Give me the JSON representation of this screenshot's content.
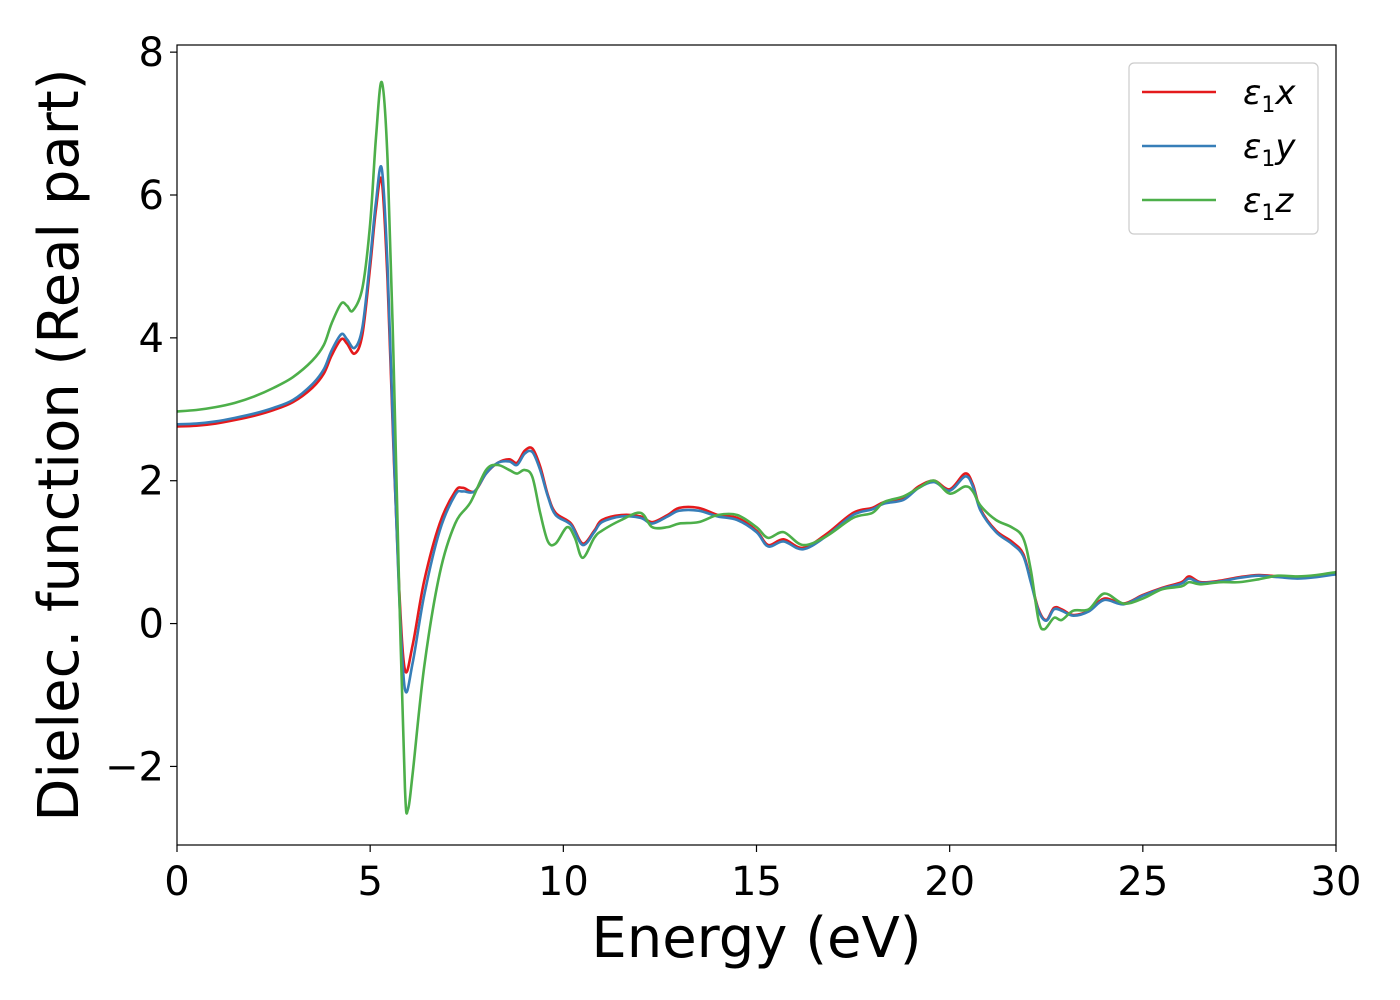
{
  "chart_data": {
    "type": "line",
    "title": "",
    "xlabel": "Energy (eV)",
    "ylabel": "Dielec. function (Real part)",
    "xlim": [
      0,
      30
    ],
    "ylim": [
      -3.1,
      8.1
    ],
    "xticks": [
      0,
      5,
      10,
      15,
      20,
      25,
      30
    ],
    "xtick_labels": [
      "0",
      "5",
      "10",
      "15",
      "20",
      "25",
      "30"
    ],
    "yticks": [
      -2,
      0,
      2,
      4,
      6,
      8
    ],
    "ytick_labels": [
      "−2",
      "0",
      "2",
      "4",
      "6",
      "8"
    ],
    "grid": false,
    "legend_position": "top-right",
    "series": [
      {
        "name": "ε1x",
        "color": "#e41a1c",
        "points": [
          [
            0,
            2.76
          ],
          [
            0.5,
            2.77
          ],
          [
            1,
            2.8
          ],
          [
            1.5,
            2.85
          ],
          [
            2,
            2.91
          ],
          [
            2.5,
            2.99
          ],
          [
            3,
            3.1
          ],
          [
            3.5,
            3.3
          ],
          [
            3.8,
            3.5
          ],
          [
            4,
            3.75
          ],
          [
            4.25,
            3.98
          ],
          [
            4.4,
            3.92
          ],
          [
            4.6,
            3.78
          ],
          [
            4.8,
            4.05
          ],
          [
            5.0,
            5.0
          ],
          [
            5.15,
            5.8
          ],
          [
            5.3,
            6.2
          ],
          [
            5.45,
            4.8
          ],
          [
            5.6,
            2.5
          ],
          [
            5.75,
            0.5
          ],
          [
            5.9,
            -0.65
          ],
          [
            6.1,
            -0.3
          ],
          [
            6.4,
            0.6
          ],
          [
            6.8,
            1.4
          ],
          [
            7.2,
            1.85
          ],
          [
            7.4,
            1.9
          ],
          [
            7.7,
            1.85
          ],
          [
            8.0,
            2.1
          ],
          [
            8.3,
            2.25
          ],
          [
            8.6,
            2.3
          ],
          [
            8.8,
            2.25
          ],
          [
            9.0,
            2.42
          ],
          [
            9.2,
            2.45
          ],
          [
            9.4,
            2.2
          ],
          [
            9.6,
            1.8
          ],
          [
            9.8,
            1.55
          ],
          [
            10.2,
            1.4
          ],
          [
            10.5,
            1.12
          ],
          [
            10.8,
            1.3
          ],
          [
            11.0,
            1.45
          ],
          [
            11.5,
            1.52
          ],
          [
            12.0,
            1.5
          ],
          [
            12.3,
            1.42
          ],
          [
            12.7,
            1.52
          ],
          [
            13.0,
            1.62
          ],
          [
            13.5,
            1.62
          ],
          [
            14.0,
            1.52
          ],
          [
            14.5,
            1.48
          ],
          [
            15.0,
            1.3
          ],
          [
            15.3,
            1.1
          ],
          [
            15.7,
            1.18
          ],
          [
            16.2,
            1.06
          ],
          [
            16.8,
            1.25
          ],
          [
            17.5,
            1.55
          ],
          [
            18.0,
            1.62
          ],
          [
            18.3,
            1.7
          ],
          [
            18.8,
            1.75
          ],
          [
            19.2,
            1.92
          ],
          [
            19.6,
            2.0
          ],
          [
            20.0,
            1.88
          ],
          [
            20.4,
            2.1
          ],
          [
            20.6,
            1.95
          ],
          [
            20.8,
            1.6
          ],
          [
            21.2,
            1.3
          ],
          [
            21.6,
            1.15
          ],
          [
            21.9,
            0.98
          ],
          [
            22.1,
            0.6
          ],
          [
            22.3,
            0.2
          ],
          [
            22.5,
            0.05
          ],
          [
            22.7,
            0.22
          ],
          [
            22.9,
            0.2
          ],
          [
            23.2,
            0.12
          ],
          [
            23.6,
            0.18
          ],
          [
            24.0,
            0.35
          ],
          [
            24.5,
            0.28
          ],
          [
            25.0,
            0.4
          ],
          [
            25.5,
            0.5
          ],
          [
            26.0,
            0.58
          ],
          [
            26.2,
            0.66
          ],
          [
            26.5,
            0.58
          ],
          [
            27.0,
            0.6
          ],
          [
            27.5,
            0.65
          ],
          [
            28.0,
            0.68
          ],
          [
            28.5,
            0.66
          ],
          [
            29.0,
            0.64
          ],
          [
            29.5,
            0.66
          ],
          [
            30.0,
            0.7
          ]
        ]
      },
      {
        "name": "ε1y",
        "color": "#377eb8",
        "points": [
          [
            0,
            2.79
          ],
          [
            0.5,
            2.8
          ],
          [
            1,
            2.83
          ],
          [
            1.5,
            2.88
          ],
          [
            2,
            2.94
          ],
          [
            2.5,
            3.02
          ],
          [
            3,
            3.13
          ],
          [
            3.5,
            3.35
          ],
          [
            3.8,
            3.56
          ],
          [
            4,
            3.82
          ],
          [
            4.25,
            4.05
          ],
          [
            4.4,
            3.98
          ],
          [
            4.6,
            3.86
          ],
          [
            4.8,
            4.15
          ],
          [
            5.0,
            5.1
          ],
          [
            5.15,
            5.9
          ],
          [
            5.3,
            6.37
          ],
          [
            5.45,
            5.0
          ],
          [
            5.6,
            2.6
          ],
          [
            5.75,
            0.4
          ],
          [
            5.9,
            -0.92
          ],
          [
            6.1,
            -0.55
          ],
          [
            6.4,
            0.4
          ],
          [
            6.8,
            1.3
          ],
          [
            7.2,
            1.8
          ],
          [
            7.4,
            1.85
          ],
          [
            7.7,
            1.85
          ],
          [
            8.0,
            2.1
          ],
          [
            8.3,
            2.25
          ],
          [
            8.6,
            2.27
          ],
          [
            8.8,
            2.22
          ],
          [
            9.0,
            2.38
          ],
          [
            9.2,
            2.4
          ],
          [
            9.4,
            2.15
          ],
          [
            9.6,
            1.78
          ],
          [
            9.8,
            1.52
          ],
          [
            10.2,
            1.38
          ],
          [
            10.5,
            1.1
          ],
          [
            10.8,
            1.28
          ],
          [
            11.0,
            1.42
          ],
          [
            11.5,
            1.5
          ],
          [
            12.0,
            1.48
          ],
          [
            12.3,
            1.4
          ],
          [
            12.7,
            1.5
          ],
          [
            13.0,
            1.58
          ],
          [
            13.5,
            1.58
          ],
          [
            14.0,
            1.5
          ],
          [
            14.5,
            1.45
          ],
          [
            15.0,
            1.28
          ],
          [
            15.3,
            1.08
          ],
          [
            15.7,
            1.15
          ],
          [
            16.2,
            1.04
          ],
          [
            16.8,
            1.22
          ],
          [
            17.5,
            1.52
          ],
          [
            18.0,
            1.6
          ],
          [
            18.3,
            1.68
          ],
          [
            18.8,
            1.73
          ],
          [
            19.2,
            1.9
          ],
          [
            19.6,
            1.98
          ],
          [
            20.0,
            1.86
          ],
          [
            20.4,
            2.06
          ],
          [
            20.6,
            1.92
          ],
          [
            20.8,
            1.58
          ],
          [
            21.2,
            1.28
          ],
          [
            21.6,
            1.12
          ],
          [
            21.9,
            0.95
          ],
          [
            22.1,
            0.58
          ],
          [
            22.3,
            0.18
          ],
          [
            22.5,
            0.04
          ],
          [
            22.7,
            0.2
          ],
          [
            22.9,
            0.18
          ],
          [
            23.2,
            0.11
          ],
          [
            23.6,
            0.17
          ],
          [
            24.0,
            0.33
          ],
          [
            24.5,
            0.27
          ],
          [
            25.0,
            0.39
          ],
          [
            25.5,
            0.49
          ],
          [
            26.0,
            0.56
          ],
          [
            26.2,
            0.63
          ],
          [
            26.5,
            0.57
          ],
          [
            27.0,
            0.59
          ],
          [
            27.5,
            0.64
          ],
          [
            28.0,
            0.67
          ],
          [
            28.5,
            0.65
          ],
          [
            29.0,
            0.63
          ],
          [
            29.5,
            0.65
          ],
          [
            30.0,
            0.69
          ]
        ]
      },
      {
        "name": "ε1z",
        "color": "#4daf4a",
        "points": [
          [
            0,
            2.97
          ],
          [
            0.5,
            2.99
          ],
          [
            1,
            3.03
          ],
          [
            1.5,
            3.09
          ],
          [
            2,
            3.18
          ],
          [
            2.5,
            3.3
          ],
          [
            3,
            3.45
          ],
          [
            3.5,
            3.68
          ],
          [
            3.8,
            3.9
          ],
          [
            4,
            4.2
          ],
          [
            4.25,
            4.48
          ],
          [
            4.4,
            4.45
          ],
          [
            4.55,
            4.38
          ],
          [
            4.8,
            4.7
          ],
          [
            5.0,
            5.6
          ],
          [
            5.15,
            6.8
          ],
          [
            5.3,
            7.58
          ],
          [
            5.45,
            6.5
          ],
          [
            5.6,
            3.8
          ],
          [
            5.75,
            0.5
          ],
          [
            5.9,
            -2.3
          ],
          [
            5.98,
            -2.6
          ],
          [
            6.1,
            -2.1
          ],
          [
            6.4,
            -0.6
          ],
          [
            6.8,
            0.7
          ],
          [
            7.2,
            1.4
          ],
          [
            7.6,
            1.7
          ],
          [
            8.0,
            2.15
          ],
          [
            8.3,
            2.22
          ],
          [
            8.6,
            2.15
          ],
          [
            8.8,
            2.1
          ],
          [
            9.0,
            2.15
          ],
          [
            9.2,
            2.05
          ],
          [
            9.4,
            1.55
          ],
          [
            9.6,
            1.15
          ],
          [
            9.8,
            1.12
          ],
          [
            10.1,
            1.35
          ],
          [
            10.3,
            1.2
          ],
          [
            10.5,
            0.92
          ],
          [
            10.8,
            1.2
          ],
          [
            11.0,
            1.3
          ],
          [
            11.5,
            1.45
          ],
          [
            12.0,
            1.55
          ],
          [
            12.3,
            1.35
          ],
          [
            12.7,
            1.35
          ],
          [
            13.0,
            1.4
          ],
          [
            13.5,
            1.42
          ],
          [
            14.0,
            1.52
          ],
          [
            14.5,
            1.52
          ],
          [
            15.0,
            1.35
          ],
          [
            15.3,
            1.2
          ],
          [
            15.7,
            1.28
          ],
          [
            16.2,
            1.1
          ],
          [
            16.8,
            1.22
          ],
          [
            17.5,
            1.48
          ],
          [
            18.0,
            1.55
          ],
          [
            18.3,
            1.7
          ],
          [
            18.8,
            1.78
          ],
          [
            19.2,
            1.9
          ],
          [
            19.6,
            2.0
          ],
          [
            20.0,
            1.82
          ],
          [
            20.4,
            1.92
          ],
          [
            20.6,
            1.85
          ],
          [
            20.8,
            1.65
          ],
          [
            21.2,
            1.45
          ],
          [
            21.6,
            1.35
          ],
          [
            21.9,
            1.2
          ],
          [
            22.1,
            0.75
          ],
          [
            22.3,
            0.05
          ],
          [
            22.45,
            -0.08
          ],
          [
            22.7,
            0.08
          ],
          [
            22.9,
            0.05
          ],
          [
            23.2,
            0.18
          ],
          [
            23.6,
            0.2
          ],
          [
            24.0,
            0.42
          ],
          [
            24.5,
            0.28
          ],
          [
            25.0,
            0.35
          ],
          [
            25.5,
            0.48
          ],
          [
            26.0,
            0.52
          ],
          [
            26.2,
            0.58
          ],
          [
            26.5,
            0.55
          ],
          [
            27.0,
            0.58
          ],
          [
            27.5,
            0.58
          ],
          [
            28.0,
            0.62
          ],
          [
            28.5,
            0.67
          ],
          [
            29.0,
            0.66
          ],
          [
            29.5,
            0.68
          ],
          [
            30.0,
            0.72
          ]
        ]
      }
    ],
    "legend_entries": [
      {
        "base": "ε",
        "sub": "1",
        "comp": "x"
      },
      {
        "base": "ε",
        "sub": "1",
        "comp": "y"
      },
      {
        "base": "ε",
        "sub": "1",
        "comp": "z"
      }
    ]
  }
}
